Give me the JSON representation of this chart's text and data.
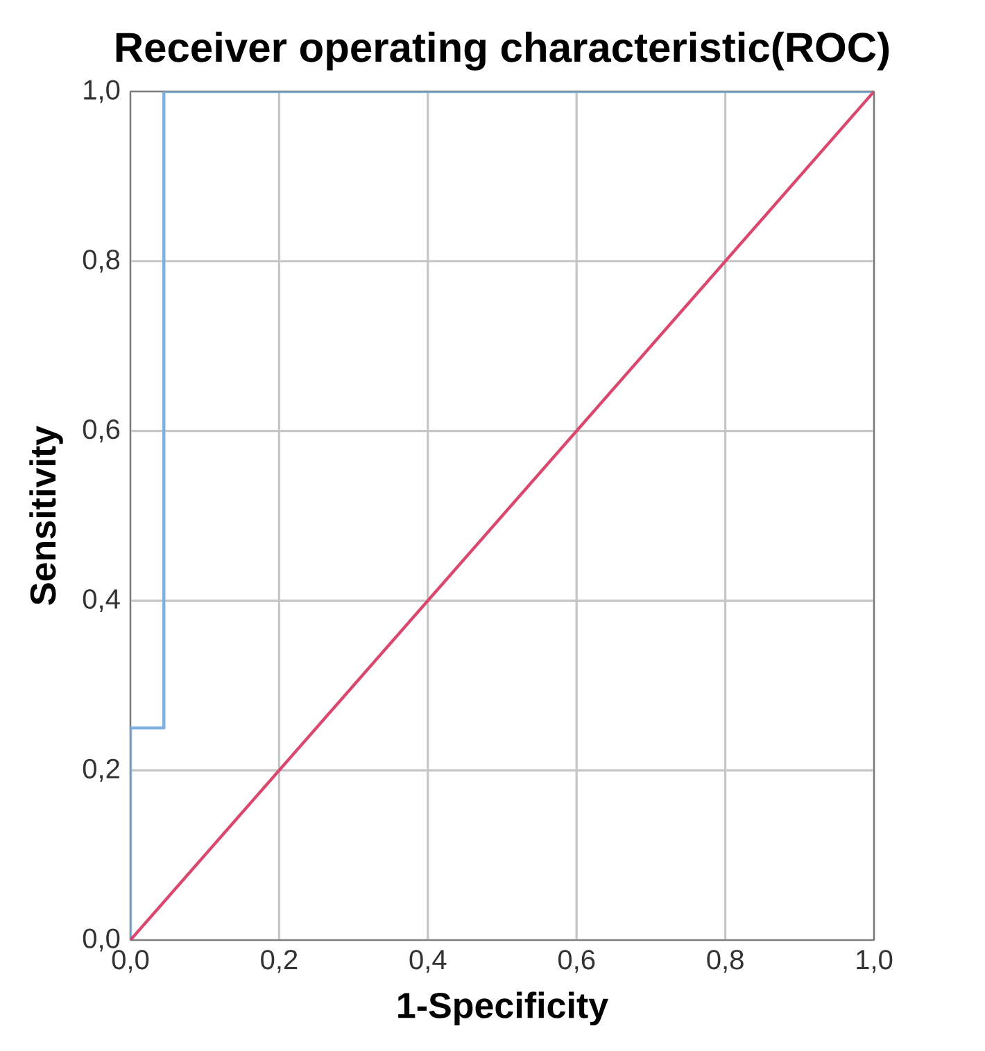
{
  "chart_data": {
    "type": "line",
    "title": "Receiver operating characteristic(ROC)",
    "xlabel": "1-Specificity",
    "ylabel": "Sensitivity",
    "series": [
      {
        "type": "step",
        "color": "#7fb0dc",
        "x": [
          0,
          0,
          0.045,
          0.045,
          1
        ],
        "values": [
          0,
          0.25,
          0.25,
          1,
          1
        ]
      },
      {
        "color": "#d9496e",
        "x": [
          0,
          1
        ],
        "values": [
          0,
          1
        ]
      }
    ],
    "xlim": [
      0,
      1
    ],
    "ylim": [
      0,
      1
    ],
    "xticks": [
      {
        "value": 0,
        "label": "0,0"
      },
      {
        "value": 0.2,
        "label": "0,2"
      },
      {
        "value": 0.4,
        "label": "0,4"
      },
      {
        "value": 0.6,
        "label": "0,6"
      },
      {
        "value": 0.8,
        "label": "0,8"
      },
      {
        "value": 1,
        "label": "1,0"
      }
    ],
    "yticks": [
      {
        "value": 0,
        "label": "0,0"
      },
      {
        "value": 0.2,
        "label": "0,2"
      },
      {
        "value": 0.4,
        "label": "0,4"
      },
      {
        "value": 0.6,
        "label": "0,6"
      },
      {
        "value": 0.8,
        "label": "0,8"
      },
      {
        "value": 1,
        "label": "1,0"
      }
    ],
    "grid": true,
    "marker": "none"
  }
}
